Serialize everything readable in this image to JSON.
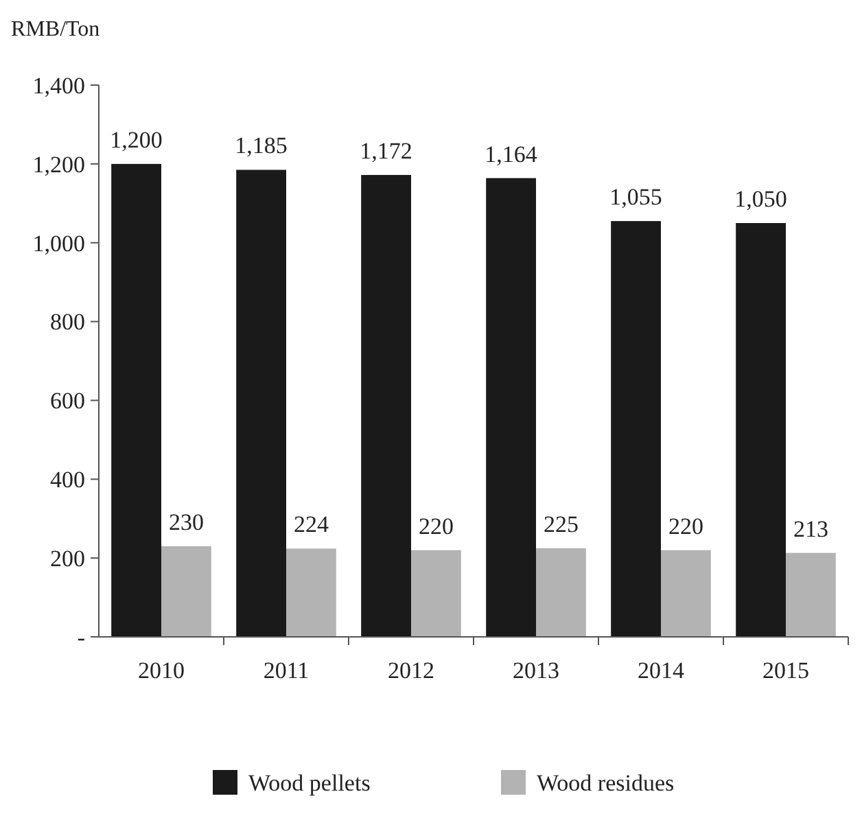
{
  "chart_data": {
    "type": "bar",
    "ylabel": "RMB/Ton",
    "categories": [
      "2010",
      "2011",
      "2012",
      "2013",
      "2014",
      "2015"
    ],
    "series": [
      {
        "name": "Wood pellets",
        "color": "#1a1a1a",
        "values": [
          1200,
          1185,
          1172,
          1164,
          1055,
          1050
        ],
        "value_labels": [
          "1,200",
          "1,185",
          "1,172",
          "1,164",
          "1,055",
          "1,050"
        ]
      },
      {
        "name": "Wood residues",
        "color": "#b3b3b3",
        "values": [
          230,
          224,
          220,
          225,
          220,
          213
        ],
        "value_labels": [
          "230",
          "224",
          "220",
          "225",
          "220",
          "213"
        ]
      }
    ],
    "ylim": [
      0,
      1400
    ],
    "yticks": [
      {
        "value": 0,
        "label": "-"
      },
      {
        "value": 200,
        "label": "200"
      },
      {
        "value": 400,
        "label": "400"
      },
      {
        "value": 600,
        "label": "600"
      },
      {
        "value": 800,
        "label": "800"
      },
      {
        "value": 1000,
        "label": "1,000"
      },
      {
        "value": 1200,
        "label": "1,200"
      },
      {
        "value": 1400,
        "label": "1,400"
      }
    ],
    "legend": "bottom",
    "grid": false
  }
}
